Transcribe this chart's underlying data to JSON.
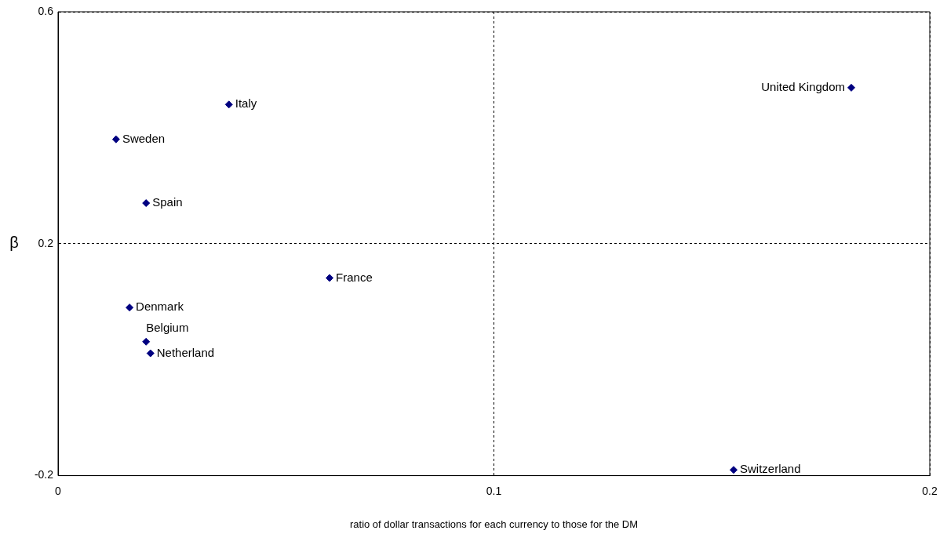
{
  "chart_data": {
    "type": "scatter",
    "xlabel": "ratio of dollar transactions for each currency to those for the DM",
    "ylabel": "β",
    "series": [
      {
        "color": "#000080",
        "x": [
          0.0392,
          0.0133,
          0.0202,
          0.0623,
          0.0164,
          0.0212,
          0.0202,
          0.182,
          0.155
        ],
        "values": [
          0.44,
          0.38,
          0.27,
          0.141,
          0.09,
          0.011,
          0.031,
          0.469,
          -0.19
        ]
      }
    ],
    "annotations": [
      {
        "text": "Italy",
        "x": 0.0392,
        "y": 0.44
      },
      {
        "text": "Sweden",
        "x": 0.0133,
        "y": 0.38
      },
      {
        "text": "Spain",
        "x": 0.0202,
        "y": 0.27
      },
      {
        "text": "France",
        "x": 0.0623,
        "y": 0.141
      },
      {
        "text": "Denmark",
        "x": 0.0164,
        "y": 0.09
      },
      {
        "text": "Netherland",
        "x": 0.0212,
        "y": 0.011
      },
      {
        "text": "Belgium",
        "x": 0.0202,
        "y": 0.031
      },
      {
        "text": "United Kingdom",
        "x": 0.182,
        "y": 0.469
      },
      {
        "text": "Switzerland",
        "x": 0.155,
        "y": -0.19
      }
    ],
    "xlim": [
      0,
      0.2
    ],
    "xticks": [
      0,
      0.1,
      0.2
    ],
    "ylim": [
      -0.2,
      0.6
    ],
    "yticks": [
      -0.2,
      0.2,
      0.6
    ],
    "grid": true,
    "marker": "diamond",
    "line_style": "dotted",
    "legend": false
  }
}
